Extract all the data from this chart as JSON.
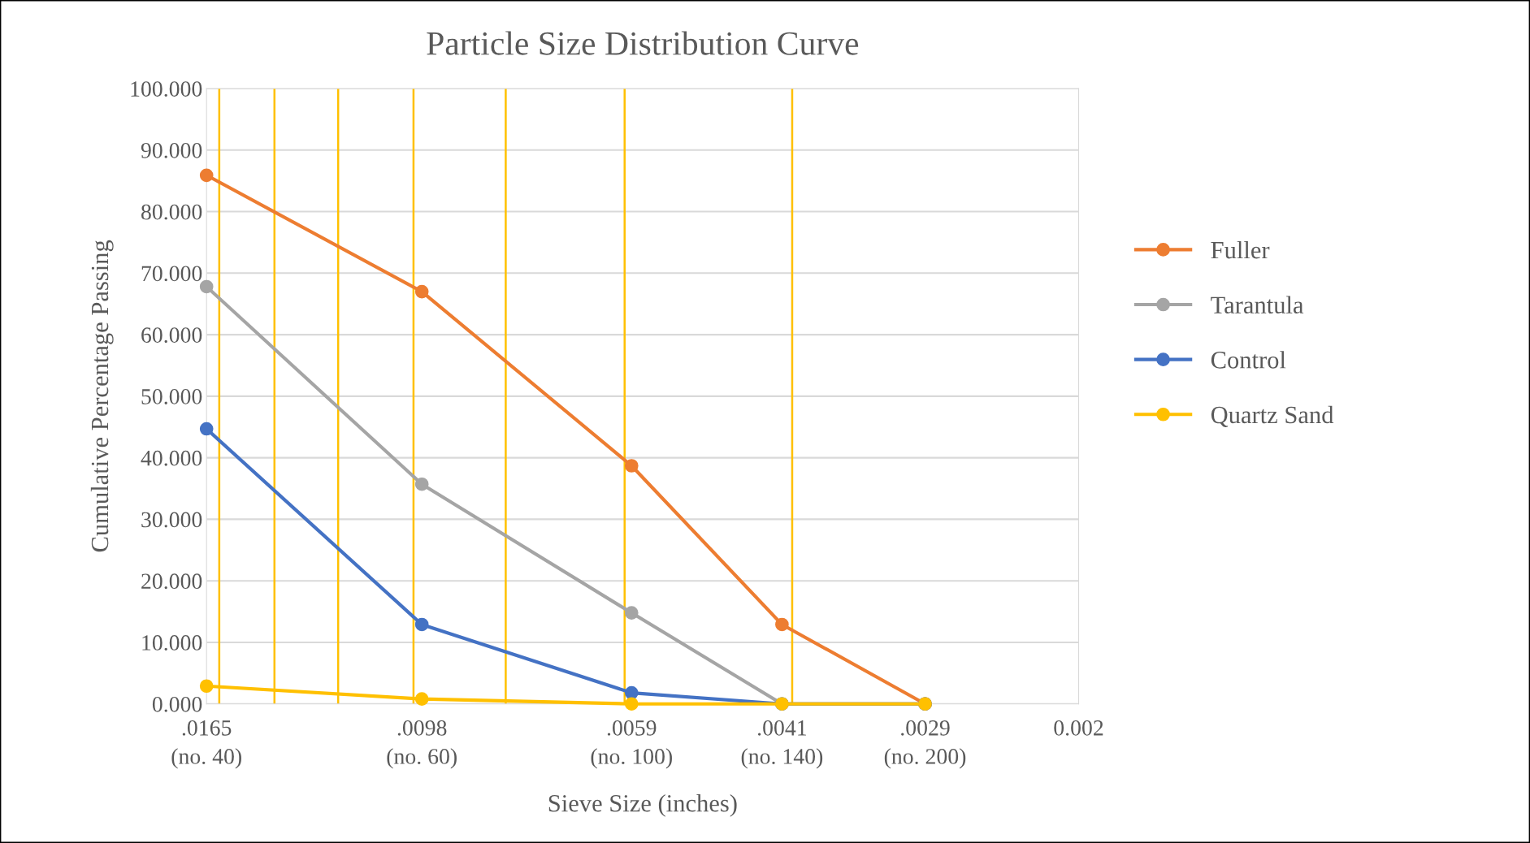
{
  "chart_data": {
    "type": "line",
    "title": "Particle Size Distribution Curve",
    "xlabel": "Sieve Size (inches)",
    "ylabel": "Cumulative Percentage Passing",
    "x": [
      0.0165,
      0.0098,
      0.0059,
      0.0041,
      0.0029
    ],
    "series": [
      {
        "name": "Fuller",
        "color": "#ed7d31",
        "values": [
          85.9,
          67.0,
          38.7,
          12.9,
          0
        ]
      },
      {
        "name": "Tarantula",
        "color": "#a5a5a5",
        "values": [
          67.8,
          35.7,
          14.8,
          0,
          0
        ]
      },
      {
        "name": "Control",
        "color": "#4472c4",
        "values": [
          44.7,
          12.9,
          1.8,
          0,
          0
        ]
      },
      {
        "name": "Quartz Sand",
        "color": "#ffc000",
        "values": [
          2.9,
          0.8,
          0,
          0,
          0
        ]
      }
    ],
    "log": "x",
    "xlim": [
      0.0165,
      0.002
    ],
    "xticks": [
      {
        "value": 0.0165,
        "label": ".0165"
      },
      {
        "value": 0.0098,
        "label": ".0098"
      },
      {
        "value": 0.0059,
        "label": ".0059"
      },
      {
        "value": 0.0041,
        "label": ".0041"
      },
      {
        "value": 0.0029,
        "label": ".0029"
      },
      0.002
    ],
    "annotations": [
      "(no. 40)",
      "(no. 60)",
      "(no. 100)",
      "(no. 140)",
      "(no. 200)"
    ],
    "ylim": [
      0,
      100
    ],
    "yticks": [
      {
        "value": 0,
        "label": "0.000"
      },
      {
        "value": 10,
        "label": "10.000"
      },
      {
        "value": 20,
        "label": "20.000"
      },
      {
        "value": 30,
        "label": "30.000"
      },
      {
        "value": 40,
        "label": "40.000"
      },
      {
        "value": 50,
        "label": "50.000"
      },
      {
        "value": 60,
        "label": "60.000"
      },
      {
        "value": 70,
        "label": "70.000"
      },
      {
        "value": 80,
        "label": "80.000"
      },
      {
        "value": 90,
        "label": "90.000"
      },
      {
        "value": 100,
        "label": "100.000"
      }
    ],
    "grid": "y",
    "legend": "right",
    "marker": "circle",
    "line_style": "solid",
    "ref_lines": [
      {
        "axis": "x",
        "value": 0.016,
        "color": "#ffc000"
      },
      {
        "axis": "x",
        "value": 0.014,
        "color": "#ffc000"
      },
      {
        "axis": "x",
        "value": 0.012,
        "color": "#ffc000"
      },
      {
        "axis": "x",
        "value": 0.01,
        "color": "#ffc000"
      },
      {
        "axis": "x",
        "value": 0.008,
        "color": "#ffc000"
      },
      {
        "axis": "x",
        "value": 0.006,
        "color": "#ffc000"
      },
      {
        "axis": "x",
        "value": 0.004,
        "color": "#ffc000"
      }
    ]
  }
}
